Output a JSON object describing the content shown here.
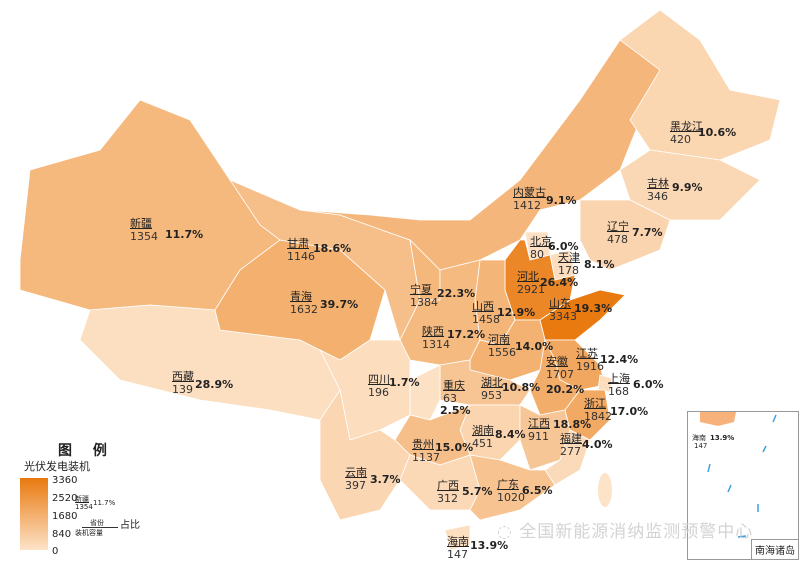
{
  "colors": {
    "low": "#fde3c8",
    "high": "#e8790f",
    "border": "#ffffff",
    "coast": "#7cc4ea"
  },
  "scale_max": 3360,
  "provinces": [
    {
      "name": "新疆",
      "capacity": 1354,
      "pct": "11.7%"
    },
    {
      "name": "西藏",
      "capacity": 139,
      "pct": "28.9%"
    },
    {
      "name": "青海",
      "capacity": 1632,
      "pct": "39.7%"
    },
    {
      "name": "甘肃",
      "capacity": 1146,
      "pct": "18.6%"
    },
    {
      "name": "内蒙古",
      "capacity": 1412,
      "pct": "9.1%"
    },
    {
      "name": "黑龙江",
      "capacity": 420,
      "pct": "10.6%"
    },
    {
      "name": "吉林",
      "capacity": 346,
      "pct": "9.9%"
    },
    {
      "name": "辽宁",
      "capacity": 478,
      "pct": "7.7%"
    },
    {
      "name": "北京",
      "capacity": 80,
      "pct": "6.0%"
    },
    {
      "name": "天津",
      "capacity": 178,
      "pct": "8.1%"
    },
    {
      "name": "河北",
      "capacity": 2921,
      "pct": "26.4%"
    },
    {
      "name": "山西",
      "capacity": 1458,
      "pct": "12.9%"
    },
    {
      "name": "宁夏",
      "capacity": 1384,
      "pct": "22.3%"
    },
    {
      "name": "陕西",
      "capacity": 1314,
      "pct": "17.2%"
    },
    {
      "name": "山东",
      "capacity": 3343,
      "pct": "19.3%"
    },
    {
      "name": "河南",
      "capacity": 1556,
      "pct": "14.0%"
    },
    {
      "name": "江苏",
      "capacity": 1916,
      "pct": "12.4%"
    },
    {
      "name": "安徽",
      "capacity": 1707,
      "pct": "20.2%"
    },
    {
      "name": "上海",
      "capacity": 168,
      "pct": "6.0%"
    },
    {
      "name": "浙江",
      "capacity": 1842,
      "pct": "17.0%"
    },
    {
      "name": "湖北",
      "capacity": 953,
      "pct": "10.8%"
    },
    {
      "name": "重庆",
      "capacity": 63,
      "pct": "2.5%"
    },
    {
      "name": "四川",
      "capacity": 196,
      "pct": "1.7%"
    },
    {
      "name": "湖南",
      "capacity": 451,
      "pct": "8.4%"
    },
    {
      "name": "江西",
      "capacity": 911,
      "pct": "18.8%"
    },
    {
      "name": "福建",
      "capacity": 277,
      "pct": "4.0%"
    },
    {
      "name": "贵州",
      "capacity": 1137,
      "pct": "15.0%"
    },
    {
      "name": "云南",
      "capacity": 397,
      "pct": "3.7%"
    },
    {
      "name": "广西",
      "capacity": 312,
      "pct": "5.7%"
    },
    {
      "name": "广东",
      "capacity": 1020,
      "pct": "6.5%"
    },
    {
      "name": "海南",
      "capacity": 147,
      "pct": "13.9%"
    }
  ],
  "legend": {
    "title": "图 例",
    "subtitle": "光伏发电装机",
    "ticks": [
      "3360",
      "2520",
      "1680",
      "840",
      "0"
    ],
    "example": {
      "name": "新疆",
      "capacity": "1354",
      "pct": "11.7%",
      "province_label": "省份",
      "capacity_label": "装机容量",
      "pct_label": "占比"
    }
  },
  "inset": {
    "title": "南海诸岛",
    "hainan_name": "海南",
    "hainan_pct": "13.9%",
    "hainan_capacity": "147"
  },
  "watermark": "全国新能源消纳监测预警中心"
}
